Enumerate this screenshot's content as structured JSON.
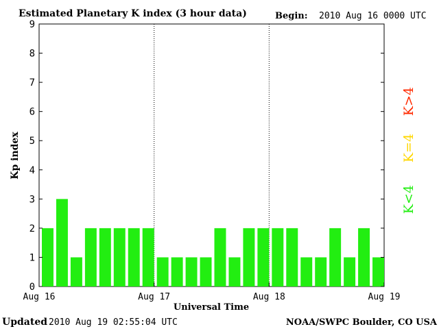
{
  "header": {
    "title": "Estimated Planetary K index (3 hour data)",
    "begin_label": "Begin:",
    "begin_value": "2010 Aug 16 0000 UTC"
  },
  "footer": {
    "updated_label": "Updated",
    "updated_value": "2010 Aug 19 02:55:04 UTC",
    "source": "NOAA/SWPC Boulder, CO USA"
  },
  "legend": [
    {
      "label": "K>4",
      "color": "#ff2a00"
    },
    {
      "label": "K=4",
      "color": "#ffd700"
    },
    {
      "label": "K<4",
      "color": "#22ee11"
    }
  ],
  "chart_data": {
    "type": "bar",
    "title": "Estimated Planetary K index (3 hour data)",
    "xlabel": "Universal Time",
    "ylabel": "Kp index",
    "ylim": [
      0,
      9
    ],
    "yticks": [
      0,
      1,
      2,
      3,
      4,
      5,
      6,
      7,
      8,
      9
    ],
    "xtick_labels": [
      "Aug 16",
      "Aug 17",
      "Aug 18",
      "Aug 19"
    ],
    "interval_hours": 3,
    "bar_color": "#22ee11",
    "grid": false,
    "values": [
      2,
      3,
      1,
      2,
      2,
      2,
      2,
      2,
      1,
      1,
      1,
      1,
      2,
      1,
      2,
      2,
      2,
      2,
      1,
      1,
      2,
      1,
      2,
      1
    ]
  }
}
